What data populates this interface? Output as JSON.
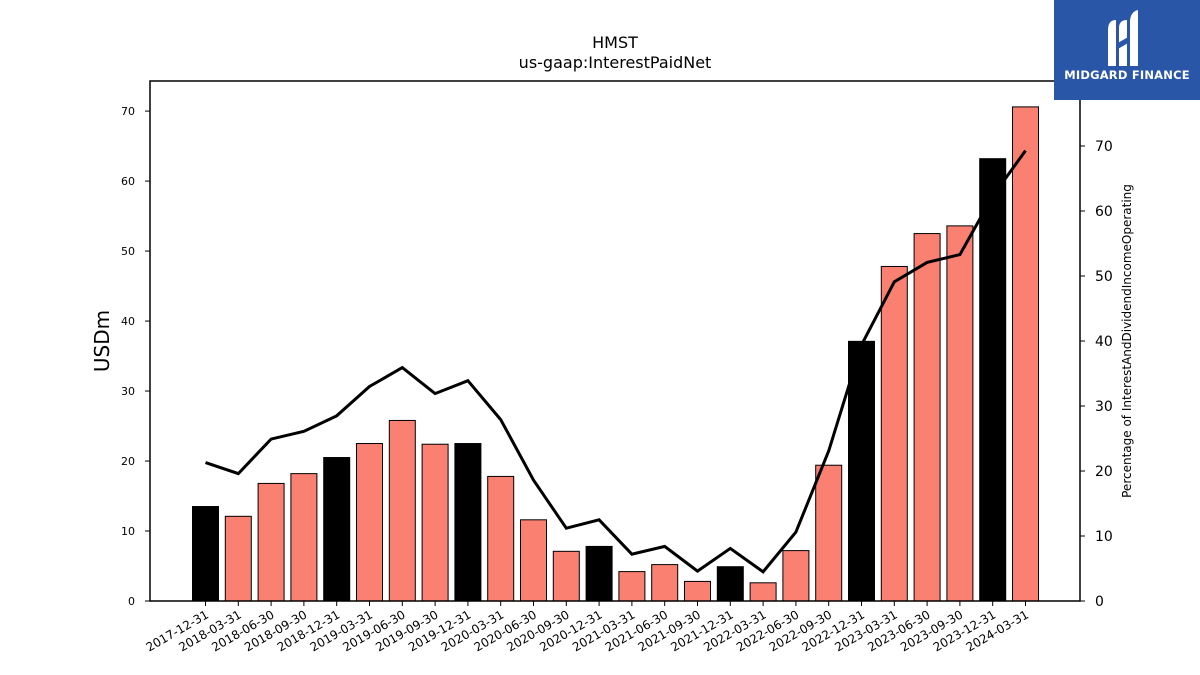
{
  "chart_data": {
    "type": "bar",
    "title": "HMST",
    "subtitle": "us-gaap:InterestPaidNet",
    "ylabel": "USDm",
    "y2label": "Percentage of InterestAndDividendIncomeOperating",
    "ylim": [
      0,
      74.3
    ],
    "y2lim": [
      0,
      80
    ],
    "yticks": [
      0,
      10,
      20,
      30,
      40,
      50,
      60,
      70
    ],
    "y2ticks": [
      0,
      10,
      20,
      30,
      40,
      50,
      60,
      70
    ],
    "categories": [
      "2017-12-31",
      "2018-03-31",
      "2018-06-30",
      "2018-09-30",
      "2018-12-31",
      "2019-03-31",
      "2019-06-30",
      "2019-09-30",
      "2019-12-31",
      "2020-03-31",
      "2020-06-30",
      "2020-09-30",
      "2020-12-31",
      "2021-03-31",
      "2021-06-30",
      "2021-09-30",
      "2021-12-31",
      "2022-03-31",
      "2022-06-30",
      "2022-09-30",
      "2022-12-31",
      "2023-03-31",
      "2023-06-30",
      "2023-09-30",
      "2023-12-31",
      "2024-03-31"
    ],
    "series": [
      {
        "type": "bar",
        "values": [
          13.5,
          12.1,
          16.8,
          18.2,
          20.5,
          22.5,
          25.8,
          22.4,
          22.5,
          17.8,
          11.6,
          7.1,
          7.8,
          4.2,
          5.2,
          2.8,
          4.9,
          2.6,
          7.2,
          19.4,
          37.1,
          47.8,
          52.5,
          53.6,
          63.2,
          70.6
        ],
        "colors": [
          "#000000",
          "#fa8072",
          "#fa8072",
          "#fa8072",
          "#000000",
          "#fa8072",
          "#fa8072",
          "#fa8072",
          "#000000",
          "#fa8072",
          "#fa8072",
          "#fa8072",
          "#000000",
          "#fa8072",
          "#fa8072",
          "#fa8072",
          "#000000",
          "#fa8072",
          "#fa8072",
          "#fa8072",
          "#000000",
          "#fa8072",
          "#fa8072",
          "#fa8072",
          "#000000",
          "#fa8072"
        ]
      },
      {
        "type": "line",
        "axis": "right",
        "color": "#000000",
        "values": [
          21.3,
          19.6,
          24.9,
          26.1,
          28.5,
          33.0,
          35.9,
          31.9,
          33.9,
          27.9,
          18.6,
          11.2,
          12.5,
          7.2,
          8.4,
          4.6,
          8.1,
          4.5,
          10.6,
          23.1,
          39.4,
          49.1,
          52.1,
          53.3,
          62.3,
          69.3
        ]
      }
    ],
    "grid": false
  },
  "logo": {
    "text": "MIDGARD FINANCE",
    "bg_color": "#2a56a8"
  }
}
